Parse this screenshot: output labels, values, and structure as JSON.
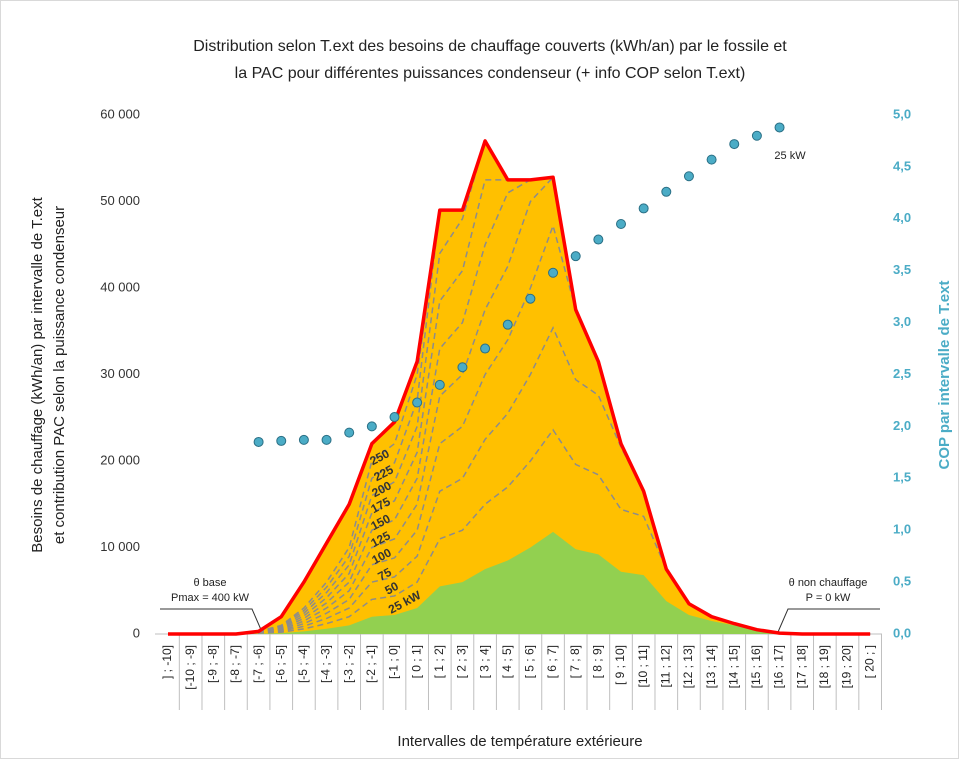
{
  "chart_data": {
    "type": "area",
    "title": [
      "Distribution  selon T.ext des besoins de chauffage couverts (kWh/an)  par le fossile et",
      "la PAC pour différentes puissances condenseur  (+ info COP selon T.ext)"
    ],
    "y_label": [
      "Besoins de chauffage (kWh/an) par intervalle de T.ext",
      "et contribution PAC selon la puissance condenseur"
    ],
    "y2_label": "COP par intervalle de T.ext",
    "x_label": "Intervalles de température extérieure",
    "categories": [
      "] ; -10]",
      "[-10 ; -9]",
      "[-9 ; -8]",
      "[-8 ; -7]",
      "[-7 ; -6]",
      "[-6 ; -5]",
      "[-5 ; -4]",
      "[-4 ; -3]",
      "[-3 ; -2]",
      "[-2 ; -1]",
      "[-1 ; 0]",
      "[ 0 ; 1]",
      "[ 1 ; 2]",
      "[ 2 ; 3]",
      "[ 3 ; 4]",
      "[ 4 ; 5]",
      "[ 5 ; 6]",
      "[ 6 ; 7]",
      "[ 7 ; 8]",
      "[ 8 ; 9]",
      "[ 9 ; 10]",
      "[10 ; 11]",
      "[11 ; 12]",
      "[12 ; 13]",
      "[13 ; 14]",
      "[14 ; 15]",
      "[15 ; 16]",
      "[16 ; 17]",
      "[17 ; 18]",
      "[18 ; 19]",
      "[19 ; 20]",
      "[ 20 ;  ]"
    ],
    "ylim": [
      0,
      60000
    ],
    "yticks": [
      0,
      {
        "value": 10000,
        "label": "10 000"
      },
      {
        "value": 20000,
        "label": "20 000"
      },
      {
        "value": 30000,
        "label": "30 000"
      },
      {
        "value": 40000,
        "label": "40 000"
      },
      {
        "value": 50000,
        "label": "50 000"
      },
      {
        "value": 60000,
        "label": "60 000"
      }
    ],
    "y2lim": [
      0,
      5
    ],
    "y2ticks": [
      {
        "value": 0,
        "label": "0,0"
      },
      {
        "value": 0.5,
        "label": "0,5"
      },
      {
        "value": 1,
        "label": "1,0"
      },
      {
        "value": 1.5,
        "label": "1,5"
      },
      {
        "value": 2,
        "label": "2,0"
      },
      {
        "value": 2.5,
        "label": "2,5"
      },
      {
        "value": 3,
        "label": "3,0"
      },
      {
        "value": 3.5,
        "label": "3,5"
      },
      {
        "value": 4,
        "label": "4,0"
      },
      {
        "value": 4.5,
        "label": "4,5"
      },
      {
        "value": 5,
        "label": "5,0"
      }
    ],
    "series": [
      {
        "color": "#ff0000",
        "fill": "#ffc000",
        "style": "envelope",
        "values": [
          0,
          0,
          0,
          0,
          300,
          2000,
          6000,
          10500,
          15000,
          22000,
          24500,
          31500,
          49000,
          49000,
          57000,
          52500,
          52500,
          52800,
          37500,
          31500,
          22000,
          16500,
          7500,
          3500,
          2000,
          1200,
          500,
          100,
          0,
          0,
          0,
          0
        ]
      },
      {
        "name": "25 kW",
        "color": "#92d050",
        "style": "filled",
        "values": [
          0,
          0,
          0,
          0,
          50,
          100,
          300,
          600,
          1000,
          2000,
          2200,
          3000,
          5500,
          6000,
          7500,
          8500,
          10000,
          11800,
          9800,
          9200,
          7200,
          6800,
          3800,
          2200,
          1500,
          1000,
          500,
          100,
          0,
          0,
          0,
          0
        ]
      },
      {
        "name": "50",
        "color": "#8c8c8c",
        "style": "dashed",
        "values": [
          0,
          0,
          0,
          0,
          100,
          200,
          600,
          1200,
          2000,
          4000,
          4400,
          6000,
          11000,
          12000,
          15000,
          17000,
          20000,
          23600,
          19600,
          18400,
          14400,
          13600,
          7500,
          3500,
          2000,
          1200,
          500,
          100,
          0,
          0,
          0,
          0
        ]
      },
      {
        "name": "75",
        "color": "#8c8c8c",
        "style": "dashed",
        "values": [
          0,
          0,
          0,
          0,
          150,
          300,
          900,
          1800,
          3000,
          6000,
          6600,
          9000,
          16500,
          18000,
          22500,
          25500,
          30000,
          35400,
          29400,
          27600,
          21600,
          16500,
          7500,
          3500,
          2000,
          1200,
          500,
          100,
          0,
          0,
          0,
          0
        ]
      },
      {
        "name": "100",
        "color": "#8c8c8c",
        "style": "dashed",
        "values": [
          0,
          0,
          0,
          0,
          200,
          400,
          1200,
          2400,
          4000,
          8000,
          8800,
          12000,
          22000,
          24000,
          30000,
          34000,
          40000,
          47200,
          37500,
          31500,
          22000,
          16500,
          7500,
          3500,
          2000,
          1200,
          500,
          100,
          0,
          0,
          0,
          0
        ]
      },
      {
        "name": "125",
        "color": "#8c8c8c",
        "style": "dashed",
        "values": [
          0,
          0,
          0,
          0,
          250,
          500,
          1500,
          3000,
          5000,
          10000,
          11000,
          15000,
          27500,
          30000,
          37500,
          42500,
          50000,
          52800,
          37500,
          31500,
          22000,
          16500,
          7500,
          3500,
          2000,
          1200,
          500,
          100,
          0,
          0,
          0,
          0
        ]
      },
      {
        "name": "150",
        "color": "#8c8c8c",
        "style": "dashed",
        "values": [
          0,
          0,
          0,
          0,
          300,
          600,
          1800,
          3600,
          6000,
          12000,
          13200,
          18000,
          33000,
          36000,
          45000,
          51000,
          52500,
          52800,
          37500,
          31500,
          22000,
          16500,
          7500,
          3500,
          2000,
          1200,
          500,
          100,
          0,
          0,
          0,
          0
        ]
      },
      {
        "name": "175",
        "color": "#8c8c8c",
        "style": "dashed",
        "values": [
          0,
          0,
          0,
          0,
          300,
          700,
          2100,
          4200,
          7000,
          14000,
          15400,
          21000,
          38500,
          42000,
          52500,
          52500,
          52500,
          52800,
          37500,
          31500,
          22000,
          16500,
          7500,
          3500,
          2000,
          1200,
          500,
          100,
          0,
          0,
          0,
          0
        ]
      },
      {
        "name": "200",
        "color": "#8c8c8c",
        "style": "dashed",
        "values": [
          0,
          0,
          0,
          0,
          300,
          800,
          2400,
          4800,
          8000,
          16000,
          17600,
          24000,
          44000,
          48000,
          57000,
          52500,
          52500,
          52800,
          37500,
          31500,
          22000,
          16500,
          7500,
          3500,
          2000,
          1200,
          500,
          100,
          0,
          0,
          0,
          0
        ]
      },
      {
        "name": "225",
        "color": "#8c8c8c",
        "style": "dashed",
        "values": [
          0,
          0,
          0,
          0,
          300,
          900,
          2700,
          5400,
          9000,
          18000,
          19800,
          27000,
          49000,
          49000,
          57000,
          52500,
          52500,
          52800,
          37500,
          31500,
          22000,
          16500,
          7500,
          3500,
          2000,
          1200,
          500,
          100,
          0,
          0,
          0,
          0
        ]
      },
      {
        "name": "250",
        "color": "#8c8c8c",
        "style": "dashed",
        "values": [
          0,
          0,
          0,
          0,
          300,
          1000,
          3000,
          6000,
          10000,
          20000,
          22000,
          30000,
          49000,
          49000,
          57000,
          52500,
          52500,
          52800,
          37500,
          31500,
          22000,
          16500,
          7500,
          3500,
          2000,
          1200,
          500,
          100,
          0,
          0,
          0,
          0
        ]
      },
      {
        "color": "#4bacc6",
        "style": "dots",
        "axis": "y2",
        "values": [
          null,
          null,
          null,
          null,
          1.85,
          1.86,
          1.87,
          1.87,
          1.94,
          2.0,
          2.09,
          2.23,
          2.4,
          2.57,
          2.75,
          2.98,
          3.23,
          3.48,
          3.64,
          3.8,
          3.95,
          4.1,
          4.26,
          4.41,
          4.57,
          4.72,
          4.8,
          4.88,
          null,
          null,
          null,
          null
        ]
      }
    ],
    "annotations": [
      "θ base",
      "Pmax = 400 kW",
      "θ non chauffage",
      "P = 0 kW",
      "25 kW"
    ]
  }
}
